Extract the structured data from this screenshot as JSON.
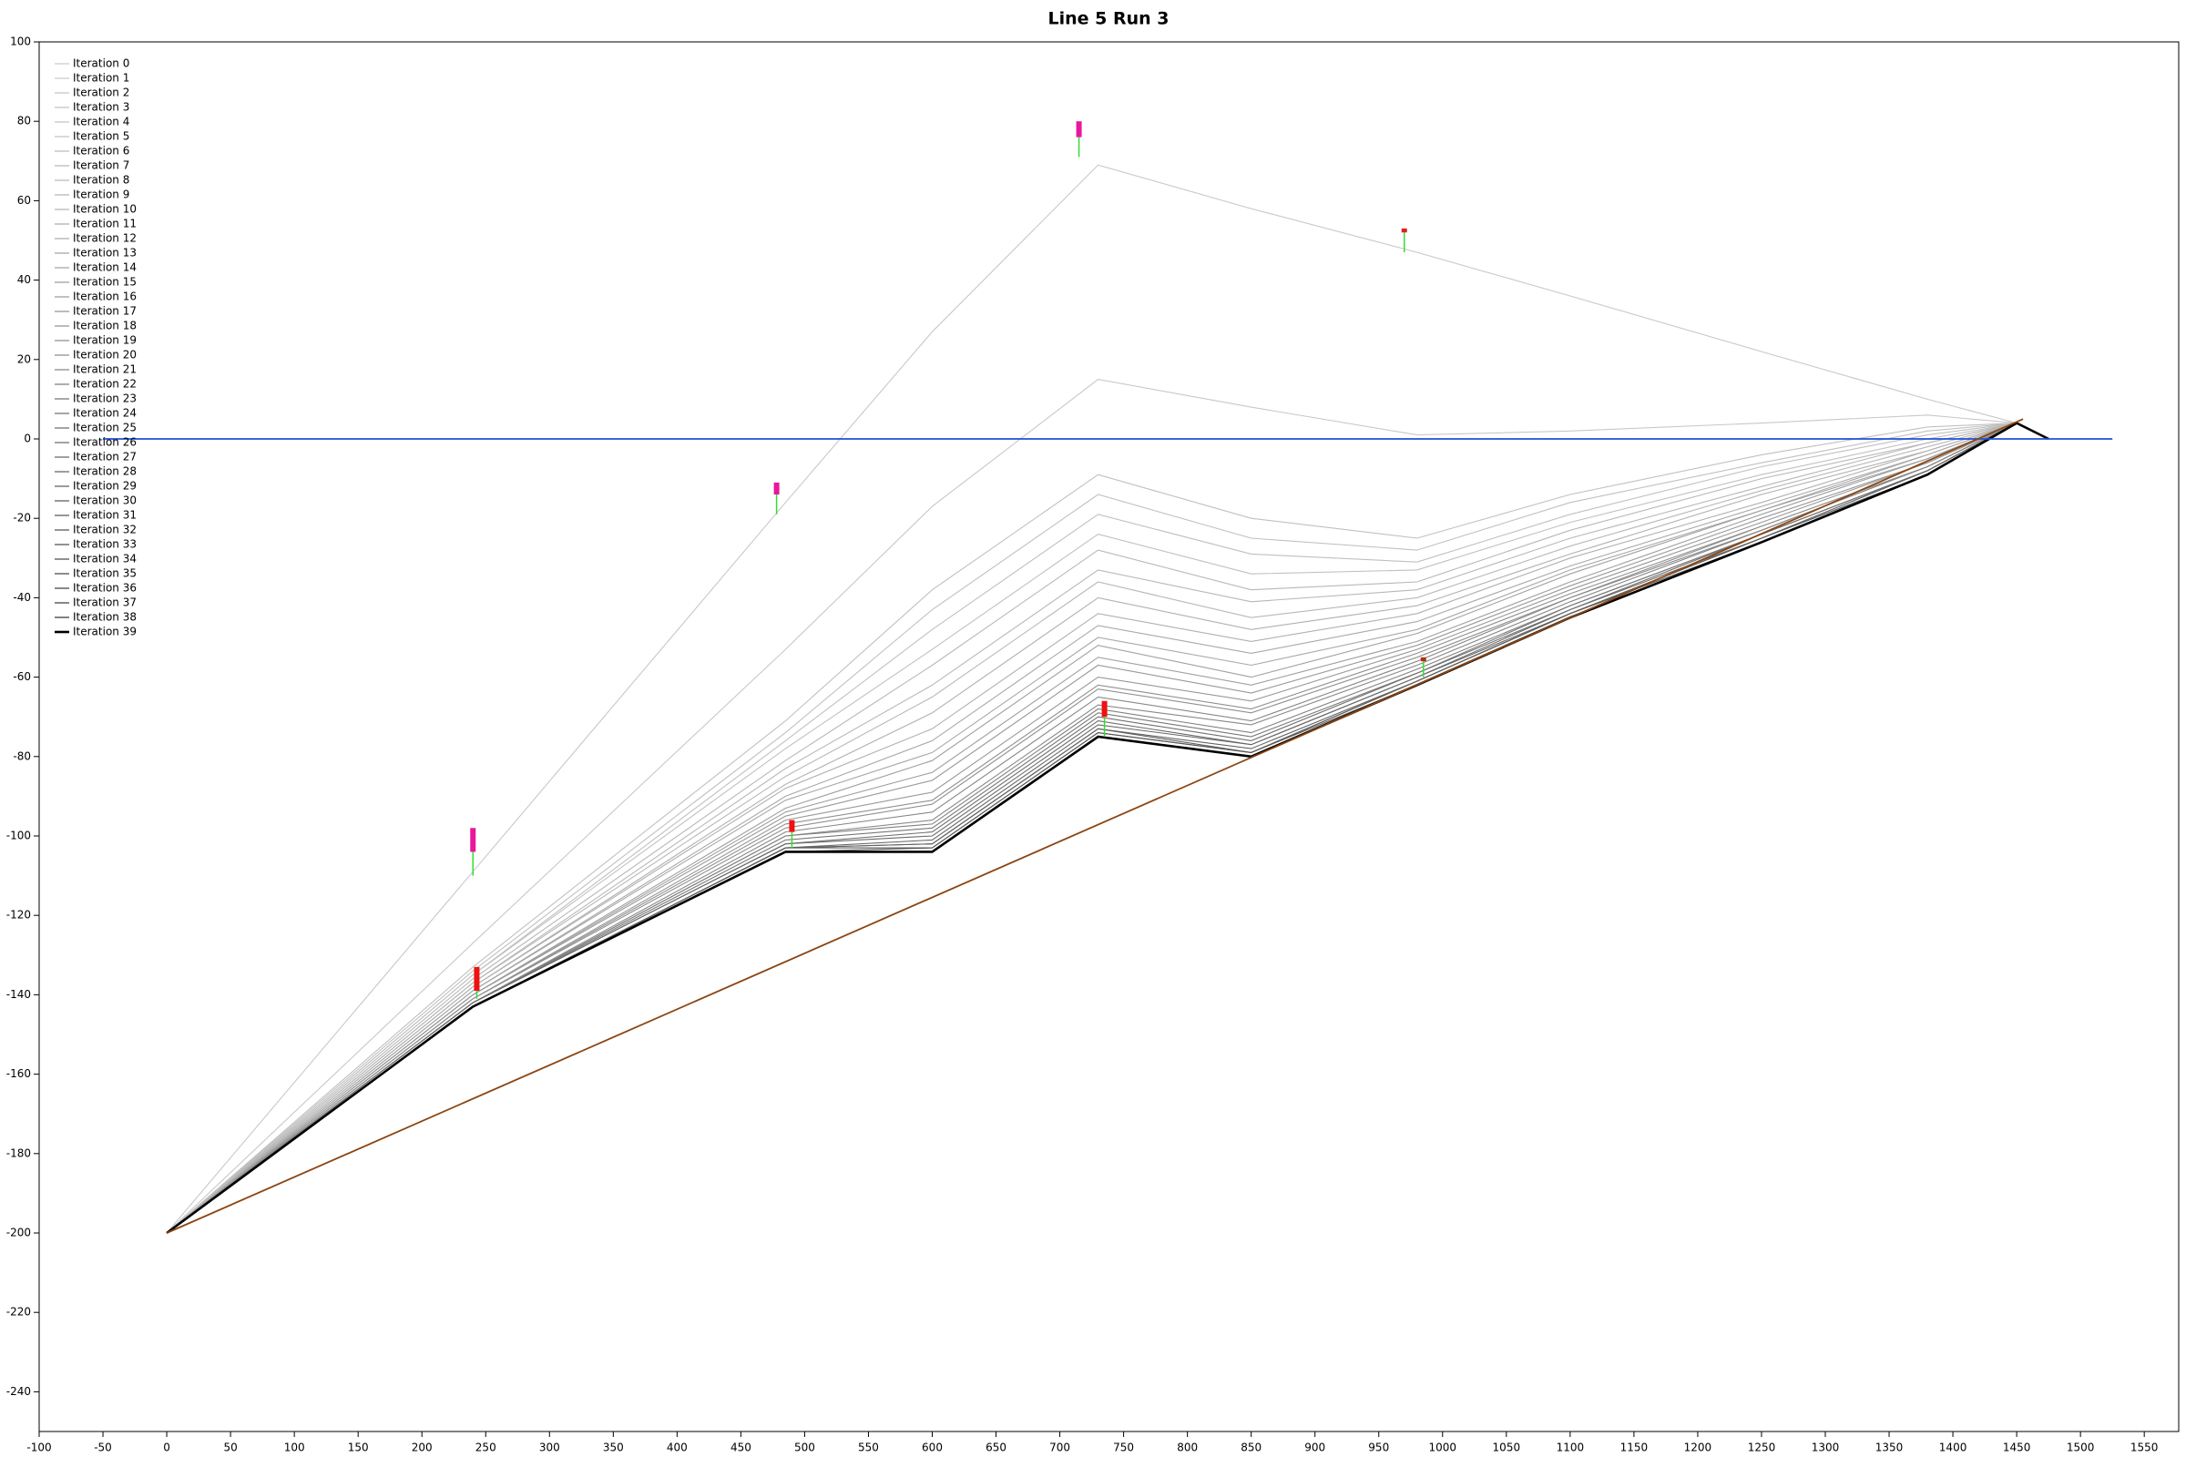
{
  "chart_data": {
    "type": "line",
    "title": "Line 5 Run 3",
    "x": [
      0,
      240,
      485,
      600,
      730,
      850,
      980,
      1100,
      1250,
      1380,
      1450,
      1475
    ],
    "xlim": [
      -100,
      1577
    ],
    "ylim": [
      -250,
      100
    ],
    "xticks": [
      -100,
      -50,
      0,
      50,
      100,
      150,
      200,
      250,
      300,
      350,
      400,
      450,
      500,
      550,
      600,
      650,
      700,
      750,
      800,
      850,
      900,
      950,
      1000,
      1050,
      1100,
      1150,
      1200,
      1250,
      1300,
      1350,
      1400,
      1450,
      1500,
      1550
    ],
    "yticks": [
      -240,
      -220,
      -200,
      -180,
      -160,
      -140,
      -120,
      -100,
      -80,
      -60,
      -40,
      -20,
      0,
      20,
      40,
      60,
      80,
      100
    ],
    "legend": "top-left",
    "sea_level": {
      "color": "#1f4fd8",
      "x": [
        -50,
        1525
      ],
      "values": [
        0,
        0
      ]
    },
    "seabed": {
      "color": "#8b4513",
      "x": [
        0,
        1455
      ],
      "values": [
        -200,
        5
      ]
    },
    "stem_color": "#33dd33",
    "buoys": [
      {
        "x": 240,
        "base": -110,
        "stem_top": -104,
        "top": -98,
        "color": "#e8179b"
      },
      {
        "x": 478,
        "base": -19,
        "stem_top": -14,
        "top": -11,
        "color": "#e8179b"
      },
      {
        "x": 715,
        "base": 71,
        "stem_top": 76,
        "top": 80,
        "color": "#e8179b"
      },
      {
        "x": 970,
        "base": 47,
        "stem_top": 52,
        "top": 53,
        "color": "#e02020"
      },
      {
        "x": 243,
        "base": -141,
        "stem_top": -139,
        "top": -133,
        "color": "#ee1111"
      },
      {
        "x": 490,
        "base": -103,
        "stem_top": -99,
        "top": -96,
        "color": "#ee1111"
      },
      {
        "x": 735,
        "base": -75,
        "stem_top": -70,
        "top": -66,
        "color": "#ee1111"
      },
      {
        "x": 985,
        "base": -60,
        "stem_top": -56,
        "top": -55,
        "color": "#b03010"
      }
    ],
    "series": [
      {
        "name": "Iteration 0",
        "color": "#c8c8c8",
        "values": [
          -200,
          -109,
          -16,
          27,
          69,
          58,
          47,
          36,
          22,
          10,
          4,
          0
        ]
      },
      {
        "name": "Iteration 1",
        "color": "#c8c8c8",
        "values": [
          -200,
          -127,
          -53,
          -17,
          15,
          8,
          1,
          2,
          4,
          6,
          4,
          0
        ]
      },
      {
        "name": "Iteration 2",
        "color": "#c0c0c0",
        "values": [
          -200,
          -133,
          -71,
          -38,
          -9,
          -20,
          -25,
          -14,
          -4,
          3,
          4,
          0
        ]
      },
      {
        "name": "Iteration 3",
        "color": "#c0c0c0",
        "values": [
          -200,
          -134,
          -74,
          -43,
          -14,
          -25,
          -28,
          -16,
          -6,
          2,
          4,
          0
        ]
      },
      {
        "name": "Iteration 4",
        "color": "#c0c0c0",
        "values": [
          -200,
          -135,
          -76,
          -48,
          -19,
          -29,
          -31,
          -19,
          -7,
          1,
          4,
          0
        ]
      },
      {
        "name": "Iteration 5",
        "color": "#c0c0c0",
        "values": [
          -200,
          -135,
          -78,
          -53,
          -24,
          -34,
          -33,
          -21,
          -9,
          0,
          4,
          0
        ]
      },
      {
        "name": "Iteration 6",
        "color": "#b8b8b8",
        "values": [
          -200,
          -136,
          -81,
          -57,
          -28,
          -38,
          -36,
          -23,
          -10,
          -1,
          4,
          0
        ]
      },
      {
        "name": "Iteration 7",
        "color": "#b8b8b8",
        "values": [
          -200,
          -137,
          -83,
          -62,
          -33,
          -41,
          -38,
          -25,
          -12,
          -1,
          4,
          0
        ]
      },
      {
        "name": "Iteration 8",
        "color": "#b8b8b8",
        "values": [
          -200,
          -137,
          -85,
          -65,
          -36,
          -45,
          -40,
          -27,
          -13,
          -2,
          4,
          0
        ]
      },
      {
        "name": "Iteration 9",
        "color": "#b0b0b0",
        "values": [
          -200,
          -138,
          -87,
          -69,
          -40,
          -48,
          -42,
          -29,
          -14,
          -3,
          4,
          0
        ]
      },
      {
        "name": "Iteration 10",
        "color": "#b0b0b0",
        "values": [
          -200,
          -138,
          -88,
          -73,
          -44,
          -51,
          -44,
          -30,
          -16,
          -3,
          4,
          0
        ]
      },
      {
        "name": "Iteration 11",
        "color": "#a8a8a8",
        "values": [
          -200,
          -139,
          -90,
          -76,
          -47,
          -54,
          -46,
          -32,
          -17,
          -4,
          4,
          0
        ]
      },
      {
        "name": "Iteration 12",
        "color": "#a8a8a8",
        "values": [
          -200,
          -139,
          -91,
          -79,
          -50,
          -57,
          -48,
          -33,
          -18,
          -4,
          4,
          0
        ]
      },
      {
        "name": "Iteration 13",
        "color": "#a0a0a0",
        "values": [
          -200,
          -140,
          -93,
          -81,
          -52,
          -60,
          -49,
          -34,
          -18,
          -5,
          4,
          0
        ]
      },
      {
        "name": "Iteration 14",
        "color": "#a0a0a0",
        "values": [
          -200,
          -140,
          -94,
          -84,
          -55,
          -62,
          -51,
          -36,
          -19,
          -5,
          4,
          0
        ]
      },
      {
        "name": "Iteration 15",
        "color": "#989898",
        "values": [
          -200,
          -140,
          -95,
          -86,
          -57,
          -64,
          -52,
          -37,
          -20,
          -6,
          4,
          0
        ]
      },
      {
        "name": "Iteration 16",
        "color": "#989898",
        "values": [
          -200,
          -141,
          -96,
          -89,
          -60,
          -66,
          -53,
          -38,
          -21,
          -6,
          4,
          0
        ]
      },
      {
        "name": "Iteration 17",
        "color": "#909090",
        "values": [
          -200,
          -141,
          -97,
          -91,
          -62,
          -68,
          -54,
          -39,
          -22,
          -7,
          4,
          0
        ]
      },
      {
        "name": "Iteration 18",
        "color": "#909090",
        "values": [
          -200,
          -141,
          -98,
          -92,
          -63,
          -69,
          -55,
          -40,
          -22,
          -7,
          4,
          0
        ]
      },
      {
        "name": "Iteration 19",
        "color": "#888888",
        "values": [
          -200,
          -142,
          -99,
          -94,
          -65,
          -71,
          -56,
          -40,
          -23,
          -7,
          4,
          0
        ]
      },
      {
        "name": "Iteration 20",
        "color": "#888888",
        "values": [
          -200,
          -142,
          -100,
          -96,
          -67,
          -72,
          -57,
          -41,
          -23,
          -7,
          4,
          0
        ]
      },
      {
        "name": "Iteration 21",
        "color": "#808080",
        "values": [
          -200,
          -142,
          -100,
          -97,
          -68,
          -74,
          -58,
          -42,
          -24,
          -8,
          4,
          0
        ]
      },
      {
        "name": "Iteration 22",
        "color": "#787878",
        "values": [
          -200,
          -142,
          -101,
          -98,
          -69,
          -75,
          -59,
          -42,
          -24,
          -8,
          4,
          0
        ]
      },
      {
        "name": "Iteration 23",
        "color": "#707070",
        "values": [
          -200,
          -142,
          -102,
          -99,
          -70,
          -76,
          -59,
          -43,
          -24,
          -8,
          4,
          0
        ]
      },
      {
        "name": "Iteration 24",
        "color": "#6c6c6c",
        "values": [
          -200,
          -142,
          -102,
          -100,
          -71,
          -77,
          -60,
          -43,
          -25,
          -8,
          4,
          0
        ]
      },
      {
        "name": "Iteration 25",
        "color": "#686868",
        "values": [
          -200,
          -143,
          -103,
          -101,
          -72,
          -77,
          -60,
          -44,
          -25,
          -8,
          4,
          0
        ]
      },
      {
        "name": "Iteration 26",
        "color": "#646464",
        "values": [
          -200,
          -143,
          -103,
          -102,
          -73,
          -78,
          -61,
          -44,
          -25,
          -9,
          4,
          0
        ]
      },
      {
        "name": "Iteration 27",
        "color": "#606060",
        "values": [
          -200,
          -143,
          -103,
          -102,
          -73,
          -79,
          -61,
          -44,
          -25,
          -9,
          4,
          0
        ]
      },
      {
        "name": "Iteration 28",
        "color": "#5c5c5c",
        "values": [
          -200,
          -143,
          -103,
          -103,
          -74,
          -79,
          -61,
          -44,
          -26,
          -9,
          4,
          0
        ]
      },
      {
        "name": "Iteration 29",
        "color": "#585858",
        "values": [
          -200,
          -143,
          -104,
          -103,
          -74,
          -79,
          -62,
          -45,
          -26,
          -9,
          4,
          0
        ]
      },
      {
        "name": "Iteration 30",
        "color": "#545454",
        "values": [
          -200,
          -143,
          -104,
          -104,
          -75,
          -80,
          -62,
          -45,
          -26,
          -9,
          4,
          0
        ]
      },
      {
        "name": "Iteration 31",
        "color": "#505050",
        "values": [
          -200,
          -143,
          -104,
          -104,
          -75,
          -80,
          -62,
          -45,
          -26,
          -9,
          4,
          0
        ]
      },
      {
        "name": "Iteration 32",
        "color": "#4c4c4c",
        "values": [
          -200,
          -143,
          -104,
          -104,
          -75,
          -80,
          -62,
          -45,
          -26,
          -9,
          4,
          0
        ]
      },
      {
        "name": "Iteration 33",
        "color": "#484848",
        "values": [
          -200,
          -143,
          -104,
          -104,
          -75,
          -80,
          -62,
          -45,
          -26,
          -9,
          4,
          0
        ]
      },
      {
        "name": "Iteration 34",
        "color": "#444444",
        "values": [
          -200,
          -143,
          -104,
          -104,
          -75,
          -80,
          -62,
          -45,
          -26,
          -9,
          4,
          0
        ]
      },
      {
        "name": "Iteration 35",
        "color": "#404040",
        "values": [
          -200,
          -143,
          -104,
          -104,
          -75,
          -80,
          -62,
          -45,
          -26,
          -9,
          4,
          0
        ]
      },
      {
        "name": "Iteration 36",
        "color": "#3a3a3a",
        "values": [
          -200,
          -143,
          -104,
          -104,
          -75,
          -80,
          -62,
          -45,
          -26,
          -9,
          4,
          0
        ]
      },
      {
        "name": "Iteration 37",
        "color": "#343434",
        "values": [
          -200,
          -143,
          -104,
          -104,
          -75,
          -80,
          -62,
          -45,
          -26,
          -9,
          4,
          0
        ]
      },
      {
        "name": "Iteration 38",
        "color": "#2e2e2e",
        "values": [
          -200,
          -143,
          -104,
          -104,
          -75,
          -80,
          -62,
          -45,
          -26,
          -9,
          4,
          0
        ]
      },
      {
        "name": "Iteration 39",
        "color": "#000000",
        "values": [
          -200,
          -143,
          -104,
          -104,
          -75,
          -80,
          -62,
          -45,
          -26,
          -9,
          4,
          0
        ]
      }
    ]
  }
}
